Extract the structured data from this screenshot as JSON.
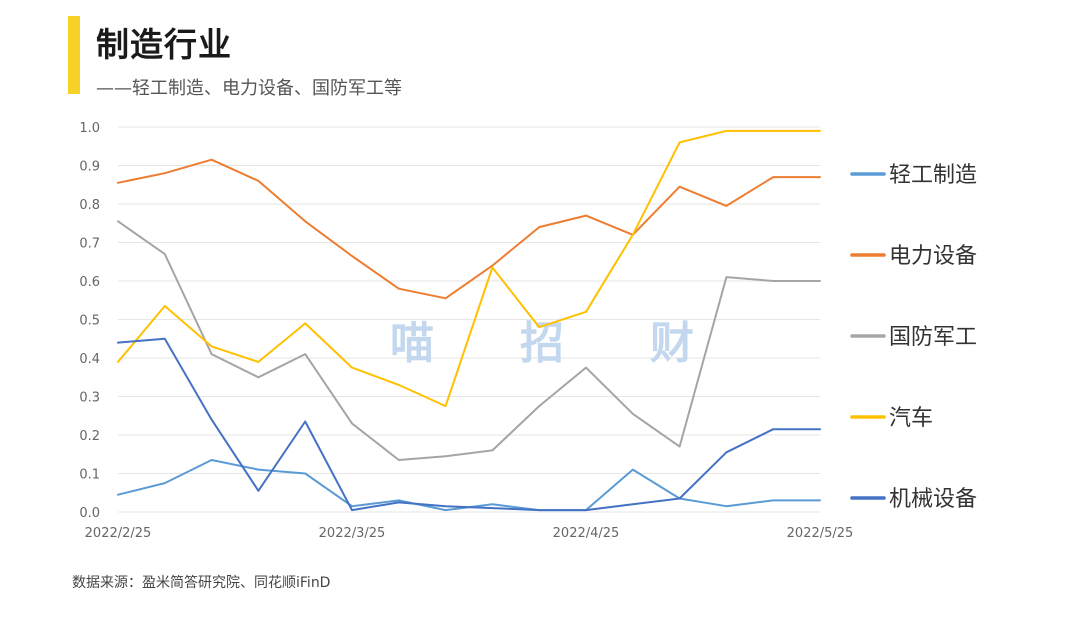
{
  "header": {
    "title": "制造行业",
    "subtitle": "——轻工制造、电力设备、国防军工等",
    "accent_color": "#F7D128"
  },
  "watermark": {
    "chars": [
      "喵",
      "招",
      "财"
    ]
  },
  "source": "数据来源：盈米简答研究院、同花顺iFinD",
  "chart_data": {
    "type": "line",
    "title": "",
    "xlabel": "",
    "ylabel": "",
    "ylim": [
      0,
      1.0
    ],
    "yticks": [
      "0.0",
      "0.1",
      "0.2",
      "0.3",
      "0.4",
      "0.5",
      "0.6",
      "0.7",
      "0.8",
      "0.9",
      "1.0"
    ],
    "grid": true,
    "legend_position": "right",
    "x_tick_labels": [
      {
        "index": 0,
        "label": "2022/2/25"
      },
      {
        "index": 5,
        "label": "2022/3/25"
      },
      {
        "index": 10,
        "label": "2022/4/25"
      },
      {
        "index": 15,
        "label": "2022/5/25"
      }
    ],
    "point_count": 16,
    "series": [
      {
        "name": "轻工制造",
        "color": "#5B9BD5",
        "values": [
          0.045,
          0.075,
          0.135,
          0.11,
          0.1,
          0.015,
          0.03,
          0.005,
          0.02,
          0.005,
          0.005,
          0.11,
          0.035,
          0.015,
          0.03,
          0.03
        ]
      },
      {
        "name": "电力设备",
        "color": "#ED7D31",
        "values": [
          0.855,
          0.88,
          0.915,
          0.86,
          0.755,
          0.665,
          0.58,
          0.555,
          0.64,
          0.74,
          0.77,
          0.72,
          0.845,
          0.795,
          0.87,
          0.87
        ]
      },
      {
        "name": "国防军工",
        "color": "#A5A5A5",
        "values": [
          0.755,
          0.67,
          0.41,
          0.35,
          0.41,
          0.23,
          0.135,
          0.145,
          0.16,
          0.275,
          0.375,
          0.255,
          0.17,
          0.61,
          0.6,
          0.6
        ]
      },
      {
        "name": "汽车",
        "color": "#FFC000",
        "values": [
          0.39,
          0.535,
          0.43,
          0.39,
          0.49,
          0.375,
          0.33,
          0.275,
          0.635,
          0.48,
          0.52,
          0.72,
          0.96,
          0.99,
          0.99,
          0.99
        ]
      },
      {
        "name": "机械设备",
        "color": "#4472C4",
        "values": [
          0.44,
          0.45,
          0.24,
          0.055,
          0.235,
          0.005,
          0.025,
          0.015,
          0.01,
          0.005,
          0.005,
          0.02,
          0.035,
          0.155,
          0.215,
          0.215
        ]
      }
    ]
  }
}
